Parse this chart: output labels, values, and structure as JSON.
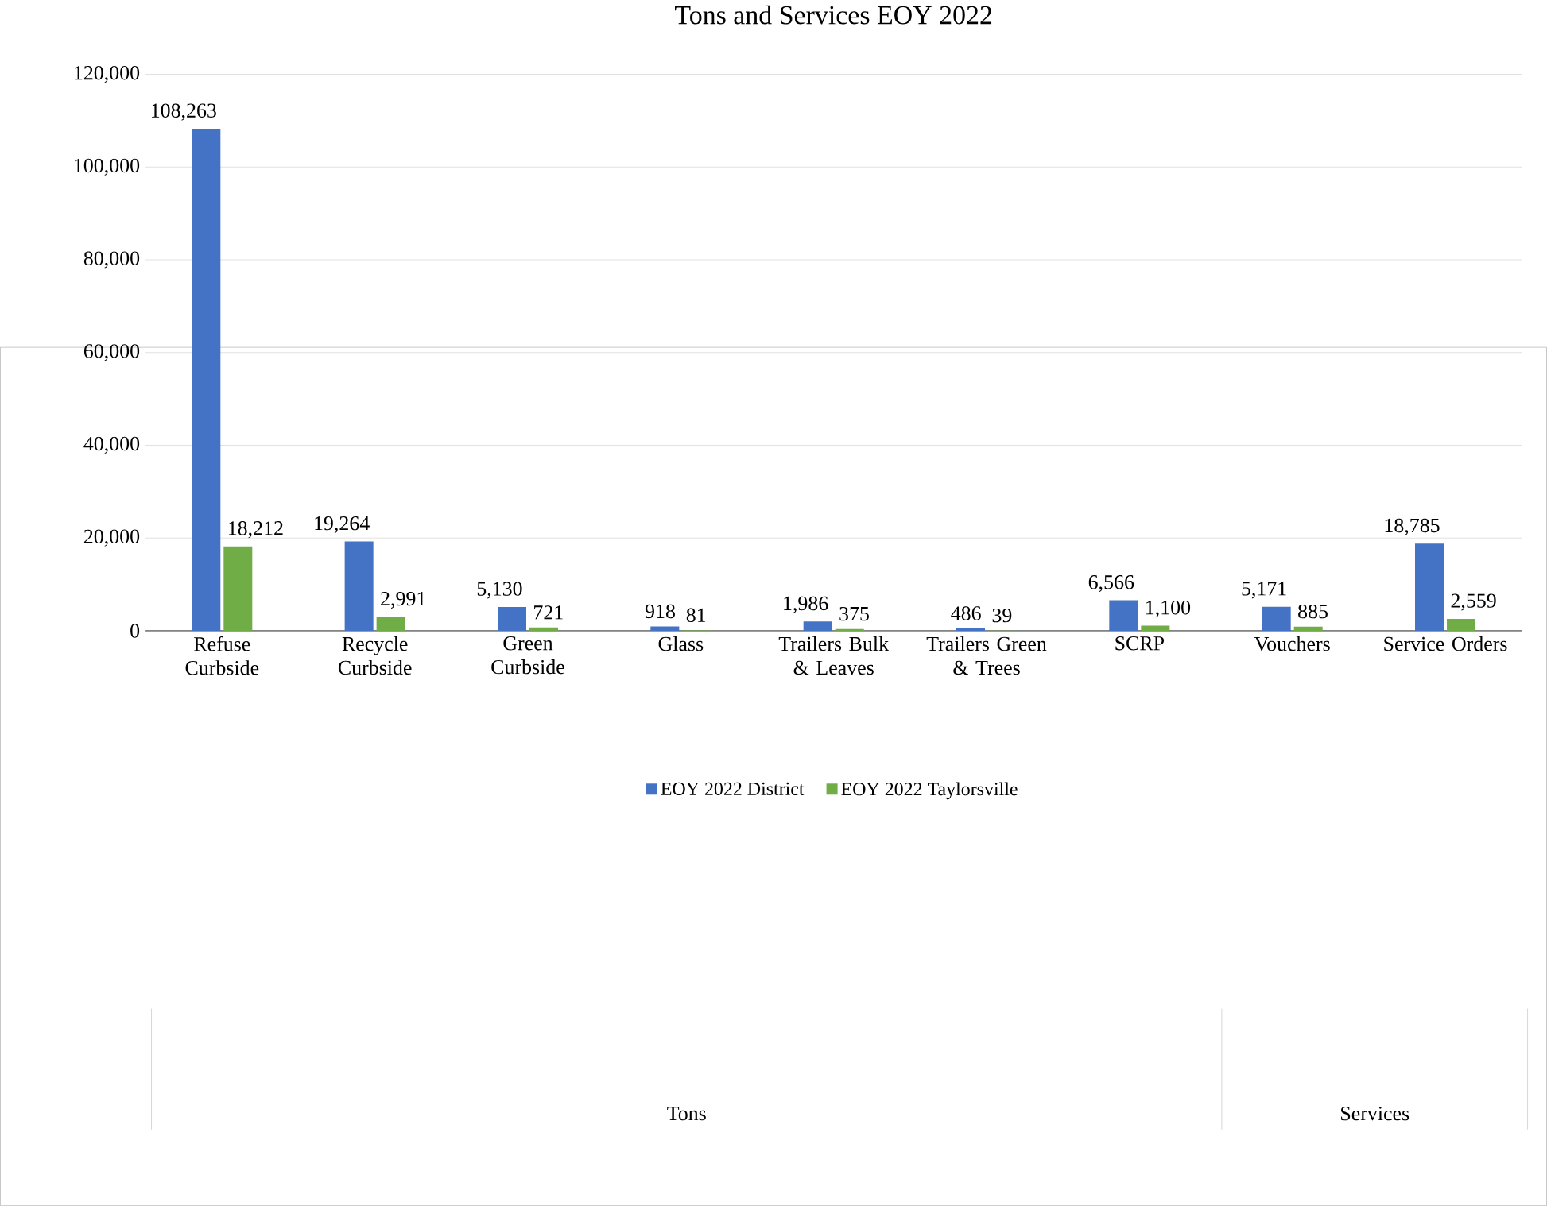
{
  "chart_data": {
    "type": "bar",
    "title": "Tons and Services EOY 2022",
    "categories": [
      "Refuse Curbside",
      "Recycle Curbside",
      "Green Curbside",
      "Glass",
      "Trailers Bulk & Leaves",
      "Trailers Green & Trees",
      "SCRP",
      "Vouchers",
      "Service Orders"
    ],
    "series": [
      {
        "name": "EOY 2022 District",
        "color": "#4472c4",
        "values": [
          108263,
          19264,
          5130,
          918,
          1986,
          486,
          6566,
          5171,
          18785
        ],
        "value_labels": [
          "108,263",
          "19,264",
          "5,130",
          "918",
          "1,986",
          "486",
          "6,566",
          "5,171",
          "18,785"
        ]
      },
      {
        "name": "EOY 2022 Taylorsville",
        "color": "#70ad47",
        "values": [
          18212,
          2991,
          721,
          81,
          375,
          39,
          1100,
          885,
          2559
        ],
        "value_labels": [
          "18,212",
          "2,991",
          "721",
          "81",
          "375",
          "39",
          "1,100",
          "885",
          "2,559"
        ]
      }
    ],
    "ylim": [
      0,
      120000
    ],
    "yticks": [
      {
        "value": 0,
        "label": "0"
      },
      {
        "value": 20000,
        "label": "20,000"
      },
      {
        "value": 40000,
        "label": "40,000"
      },
      {
        "value": 60000,
        "label": "60,000"
      },
      {
        "value": 80000,
        "label": "80,000"
      },
      {
        "value": 100000,
        "label": "100,000"
      },
      {
        "value": 120000,
        "label": "120,000"
      }
    ],
    "grid": "y",
    "legend": "bottom",
    "annotations": [
      "Tons",
      "Services"
    ]
  }
}
